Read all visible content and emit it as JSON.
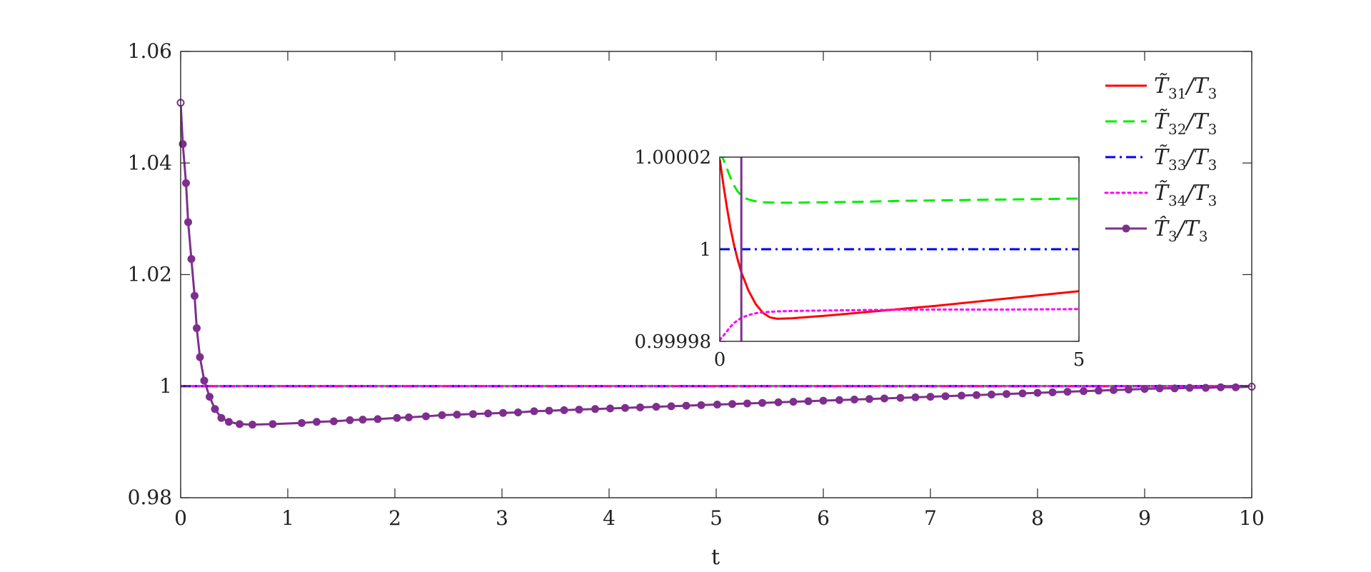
{
  "chart_data": [
    {
      "type": "line",
      "xlabel": "t",
      "ylabel": "",
      "xlim": [
        0,
        10
      ],
      "ylim": [
        0.98,
        1.06
      ],
      "xticks": [
        0,
        1,
        2,
        3,
        4,
        5,
        6,
        7,
        8,
        9,
        10
      ],
      "xtick_labels": [
        "0",
        "1",
        "2",
        "3",
        "4",
        "5",
        "6",
        "7",
        "8",
        "9",
        "10"
      ],
      "yticks": [
        0.98,
        1.0,
        1.02,
        1.04,
        1.06
      ],
      "ytick_labels": [
        "0.98",
        "1",
        "1.02",
        "1.04",
        "1.06"
      ],
      "grid": false,
      "legend_position": "top-right",
      "series": [
        {
          "name": "T̃31/T3",
          "name_main": "T̃",
          "name_sub": "31",
          "name_rest": "/T",
          "name_sub2": "3",
          "color": "#ff0000",
          "style": "solid",
          "x": [
            0,
            10
          ],
          "y": [
            1.0,
            1.0
          ]
        },
        {
          "name": "T̃32/T3",
          "name_main": "T̃",
          "name_sub": "32",
          "name_rest": "/T",
          "name_sub2": "3",
          "color": "#00ee00",
          "style": "dashed",
          "x": [
            0,
            10
          ],
          "y": [
            1.0,
            1.0
          ]
        },
        {
          "name": "T̃33/T3",
          "name_main": "T̃",
          "name_sub": "33",
          "name_rest": "/T",
          "name_sub2": "3",
          "color": "#0000ff",
          "style": "dashdot",
          "x": [
            0,
            10
          ],
          "y": [
            1.0,
            1.0
          ]
        },
        {
          "name": "T̃34/T3",
          "name_main": "T̃",
          "name_sub": "34",
          "name_rest": "/T",
          "name_sub2": "3",
          "color": "#ff00ff",
          "style": "dotted",
          "x": [
            0,
            10
          ],
          "y": [
            1.0,
            1.0
          ]
        },
        {
          "name": "T̂3/T3",
          "name_main": "T̂",
          "name_sub": "3",
          "name_rest": "/T",
          "name_sub2": "3",
          "color": "#7e2f8e",
          "style": "solid-marker",
          "x": [
            0,
            0.02,
            0.05,
            0.07,
            0.1,
            0.13,
            0.15,
            0.18,
            0.22,
            0.27,
            0.32,
            0.38,
            0.45,
            0.55,
            0.67,
            0.86,
            1.13,
            1.27,
            1.43,
            1.58,
            1.7,
            1.84,
            2.02,
            2.13,
            2.29,
            2.44,
            2.58,
            2.73,
            2.87,
            3.01,
            3.15,
            3.3,
            3.44,
            3.58,
            3.72,
            3.87,
            4.01,
            4.15,
            4.29,
            4.44,
            4.58,
            4.72,
            4.86,
            5.01,
            5.15,
            5.29,
            5.43,
            5.58,
            5.72,
            5.86,
            6.0,
            6.15,
            6.29,
            6.43,
            6.57,
            6.72,
            6.86,
            7.0,
            7.14,
            7.29,
            7.43,
            7.57,
            7.71,
            7.86,
            8.0,
            8.14,
            8.28,
            8.43,
            8.57,
            8.71,
            8.85,
            9.0,
            9.14,
            9.28,
            9.42,
            9.57,
            9.71,
            9.85,
            10.0
          ],
          "y": [
            1.0508,
            1.0434,
            1.0364,
            1.0294,
            1.0228,
            1.0162,
            1.0104,
            1.0052,
            1.001,
            0.9981,
            0.9959,
            0.9943,
            0.9936,
            0.9932,
            0.9931,
            0.9932,
            0.9934,
            0.9936,
            0.9937,
            0.9939,
            0.994,
            0.9941,
            0.9943,
            0.9944,
            0.9946,
            0.9948,
            0.9949,
            0.995,
            0.9951,
            0.9952,
            0.9953,
            0.9955,
            0.9956,
            0.9957,
            0.9958,
            0.9959,
            0.996,
            0.9961,
            0.9962,
            0.9963,
            0.9964,
            0.9965,
            0.9966,
            0.9967,
            0.9968,
            0.9969,
            0.997,
            0.9971,
            0.9972,
            0.9973,
            0.9974,
            0.9975,
            0.9976,
            0.9977,
            0.9978,
            0.9979,
            0.998,
            0.9981,
            0.9982,
            0.9983,
            0.9984,
            0.9985,
            0.9986,
            0.9987,
            0.9988,
            0.9989,
            0.999,
            0.9991,
            0.9992,
            0.9993,
            0.9994,
            0.9995,
            0.9996,
            0.9996,
            0.9997,
            0.9997,
            0.9998,
            0.9998,
            0.9999
          ]
        }
      ]
    },
    {
      "type": "line",
      "inset": true,
      "xlim": [
        0,
        5
      ],
      "ylim": [
        0.99998,
        1.00002
      ],
      "xticks": [
        0,
        5
      ],
      "xtick_labels": [
        "0",
        "5"
      ],
      "yticks": [
        0.99998,
        1.0,
        1.00002
      ],
      "ytick_labels": [
        "0.99998",
        "1",
        "1.00002"
      ],
      "series": [
        {
          "name": "T̃31/T3",
          "color": "#ff0000",
          "style": "solid",
          "x": [
            0.0,
            0.05,
            0.1,
            0.15,
            0.2,
            0.25,
            0.3,
            0.4,
            0.5,
            0.6,
            0.7,
            0.8,
            1.0,
            1.5,
            2.0,
            2.5,
            3.0,
            3.5,
            4.0,
            4.5,
            5.0
          ],
          "y": [
            1.0000195,
            1.000014,
            1.000009,
            1.0000045,
            1.0000008,
            0.9999977,
            0.999995,
            0.999991,
            0.9999881,
            0.9999862,
            0.9999852,
            0.9999849,
            0.999985,
            0.9999856,
            0.9999863,
            0.999987,
            0.9999877,
            0.9999885,
            0.9999893,
            0.9999901,
            0.9999909
          ]
        },
        {
          "name": "T̃32/T3",
          "color": "#00ee00",
          "style": "dashed",
          "x": [
            0.0,
            0.05,
            0.1,
            0.15,
            0.2,
            0.25,
            0.3,
            0.35,
            0.4,
            0.5,
            0.6,
            0.8,
            1.0,
            1.5,
            2.0,
            2.5,
            3.0,
            3.5,
            4.0,
            4.5,
            5.0
          ],
          "y": [
            1.000021,
            1.0000195,
            1.0000175,
            1.0000155,
            1.0000138,
            1.0000125,
            1.0000117,
            1.0000111,
            1.0000108,
            1.0000104,
            1.0000102,
            1.0000101,
            1.0000101,
            1.0000102,
            1.0000103,
            1.0000105,
            1.0000106,
            1.0000107,
            1.0000108,
            1.0000109,
            1.000011
          ]
        },
        {
          "name": "T̃33/T3",
          "color": "#0000ff",
          "style": "dashdot",
          "x": [
            0,
            5
          ],
          "y": [
            1.0,
            1.0
          ]
        },
        {
          "name": "T̃34/T3",
          "color": "#ff00ff",
          "style": "dotted",
          "x": [
            0.0,
            0.05,
            0.1,
            0.15,
            0.2,
            0.3,
            0.4,
            0.5,
            0.6,
            0.8,
            1.0,
            1.5,
            2.0,
            3.0,
            4.0,
            5.0
          ],
          "y": [
            0.9999803,
            0.9999812,
            0.9999822,
            0.9999832,
            0.999984,
            0.9999851,
            0.9999857,
            0.9999861,
            0.9999863,
            0.9999865,
            0.9999866,
            0.9999867,
            0.9999868,
            0.9999869,
            0.9999869,
            0.999987
          ]
        },
        {
          "name": "T̂3/T3",
          "color": "#7e2f8e",
          "style": "solid",
          "x": [
            0.3,
            0.3
          ],
          "y": [
            0.99998,
            1.00002
          ]
        }
      ]
    }
  ]
}
